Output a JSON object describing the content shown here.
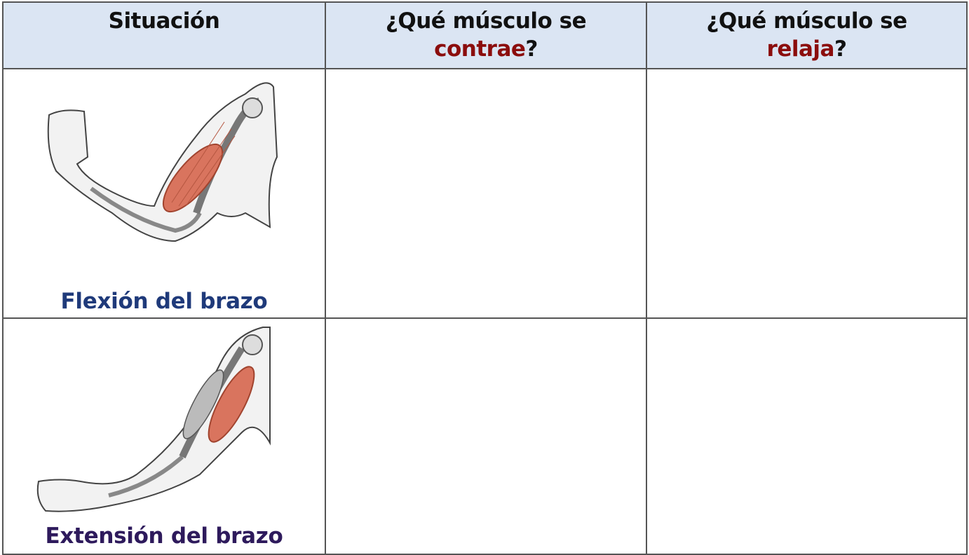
{
  "table": {
    "header": [
      {
        "text": "Situación"
      },
      {
        "text": "¿Qué músculo se",
        "highlight": "contrae",
        "suffix": "?"
      },
      {
        "text": "¿Qué músculo se",
        "highlight": "relaja",
        "suffix": "?"
      }
    ],
    "rows": [
      {
        "caption": "Flexión del brazo"
      },
      {
        "caption": "Extensión del brazo"
      }
    ]
  }
}
